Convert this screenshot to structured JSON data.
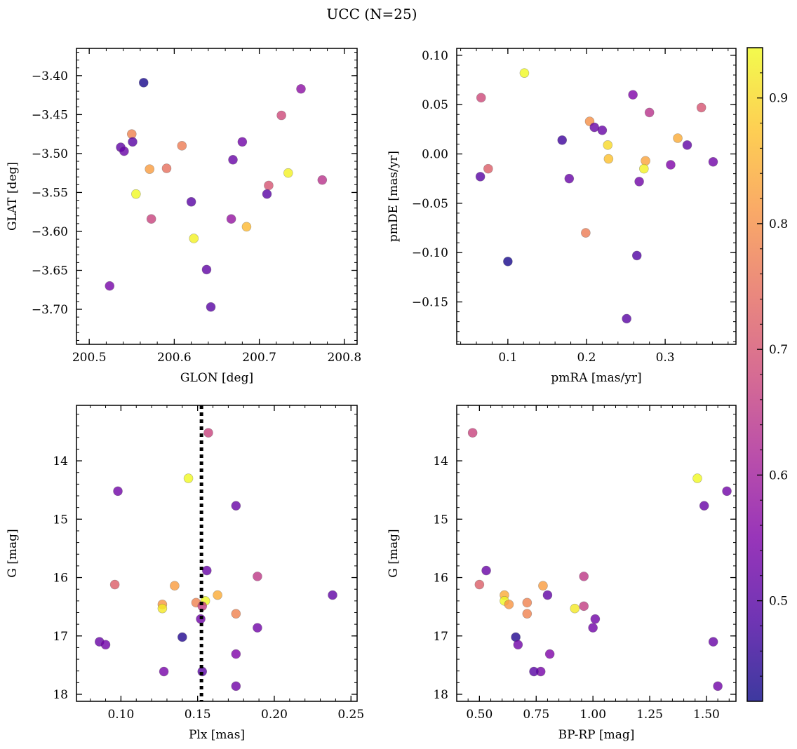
{
  "figure": {
    "title": "UCC (N=25)"
  },
  "colorbar": {
    "range": [
      0.42,
      0.94
    ],
    "ticks": [
      0.5,
      0.6,
      0.7,
      0.8,
      0.9
    ],
    "tick_labels": [
      "0.5",
      "0.6",
      "0.7",
      "0.8",
      "0.9"
    ],
    "colormap": "plasma"
  },
  "chart_data": [
    {
      "type": "scatter",
      "title": "",
      "xlabel": "GLON [deg]",
      "ylabel": "GLAT [deg]",
      "xlim": [
        200.485,
        200.815
      ],
      "ylim": [
        -3.745,
        -3.365
      ],
      "yinvert": false,
      "xticks": [
        200.5,
        200.6,
        200.7,
        200.8
      ],
      "xtick_labels": [
        "200.5",
        "200.6",
        "200.7",
        "200.8"
      ],
      "yticks": [
        -3.4,
        -3.45,
        -3.5,
        -3.55,
        -3.6,
        -3.65,
        -3.7
      ],
      "ytick_labels": [
        "−3.40",
        "−3.45",
        "−3.50",
        "−3.55",
        "−3.60",
        "−3.65",
        "−3.70"
      ],
      "points": [
        {
          "x": 200.564,
          "y": -3.409,
          "c": 0.43
        },
        {
          "x": 200.749,
          "y": -3.417,
          "c": 0.57
        },
        {
          "x": 200.726,
          "y": -3.451,
          "c": 0.68
        },
        {
          "x": 200.55,
          "y": -3.475,
          "c": 0.78
        },
        {
          "x": 200.551,
          "y": -3.485,
          "c": 0.5
        },
        {
          "x": 200.537,
          "y": -3.492,
          "c": 0.51
        },
        {
          "x": 200.541,
          "y": -3.497,
          "c": 0.52
        },
        {
          "x": 200.609,
          "y": -3.49,
          "c": 0.77
        },
        {
          "x": 200.68,
          "y": -3.485,
          "c": 0.53
        },
        {
          "x": 200.669,
          "y": -3.508,
          "c": 0.52
        },
        {
          "x": 200.571,
          "y": -3.52,
          "c": 0.82
        },
        {
          "x": 200.591,
          "y": -3.519,
          "c": 0.75
        },
        {
          "x": 200.734,
          "y": -3.525,
          "c": 0.93
        },
        {
          "x": 200.774,
          "y": -3.534,
          "c": 0.64
        },
        {
          "x": 200.711,
          "y": -3.541,
          "c": 0.7
        },
        {
          "x": 200.555,
          "y": -3.552,
          "c": 0.94
        },
        {
          "x": 200.709,
          "y": -3.552,
          "c": 0.5
        },
        {
          "x": 200.62,
          "y": -3.562,
          "c": 0.5
        },
        {
          "x": 200.573,
          "y": -3.584,
          "c": 0.67
        },
        {
          "x": 200.667,
          "y": -3.584,
          "c": 0.58
        },
        {
          "x": 200.685,
          "y": -3.594,
          "c": 0.86
        },
        {
          "x": 200.623,
          "y": -3.609,
          "c": 0.93
        },
        {
          "x": 200.638,
          "y": -3.649,
          "c": 0.51
        },
        {
          "x": 200.524,
          "y": -3.67,
          "c": 0.54
        },
        {
          "x": 200.643,
          "y": -3.697,
          "c": 0.5
        }
      ]
    },
    {
      "type": "scatter",
      "title": "",
      "xlabel": "pmRA [mas/yr]",
      "ylabel": "pmDE [mas/yr]",
      "xlim": [
        0.035,
        0.39
      ],
      "ylim": [
        -0.193,
        0.107
      ],
      "yinvert": false,
      "xticks": [
        0.1,
        0.2,
        0.3
      ],
      "xtick_labels": [
        "0.1",
        "0.2",
        "0.3"
      ],
      "yticks": [
        0.1,
        0.05,
        0.0,
        -0.05,
        -0.1,
        -0.15
      ],
      "ytick_labels": [
        "0.10",
        "0.05",
        "0.00",
        "−0.05",
        "−0.10",
        "−0.15"
      ],
      "points": [
        {
          "x": 0.121,
          "y": 0.082,
          "c": 0.94
        },
        {
          "x": 0.066,
          "y": 0.057,
          "c": 0.68
        },
        {
          "x": 0.259,
          "y": 0.06,
          "c": 0.55
        },
        {
          "x": 0.346,
          "y": 0.047,
          "c": 0.7
        },
        {
          "x": 0.28,
          "y": 0.042,
          "c": 0.64
        },
        {
          "x": 0.204,
          "y": 0.033,
          "c": 0.8
        },
        {
          "x": 0.21,
          "y": 0.027,
          "c": 0.52
        },
        {
          "x": 0.22,
          "y": 0.024,
          "c": 0.52
        },
        {
          "x": 0.316,
          "y": 0.016,
          "c": 0.84
        },
        {
          "x": 0.169,
          "y": 0.014,
          "c": 0.47
        },
        {
          "x": 0.227,
          "y": 0.009,
          "c": 0.9
        },
        {
          "x": 0.328,
          "y": 0.009,
          "c": 0.51
        },
        {
          "x": 0.228,
          "y": -0.005,
          "c": 0.87
        },
        {
          "x": 0.275,
          "y": -0.007,
          "c": 0.83
        },
        {
          "x": 0.361,
          "y": -0.008,
          "c": 0.53
        },
        {
          "x": 0.307,
          "y": -0.011,
          "c": 0.55
        },
        {
          "x": 0.075,
          "y": -0.015,
          "c": 0.72
        },
        {
          "x": 0.273,
          "y": -0.015,
          "c": 0.93
        },
        {
          "x": 0.065,
          "y": -0.023,
          "c": 0.5
        },
        {
          "x": 0.178,
          "y": -0.025,
          "c": 0.52
        },
        {
          "x": 0.267,
          "y": -0.028,
          "c": 0.53
        },
        {
          "x": 0.199,
          "y": -0.08,
          "c": 0.77
        },
        {
          "x": 0.264,
          "y": -0.103,
          "c": 0.49
        },
        {
          "x": 0.1,
          "y": -0.109,
          "c": 0.43
        },
        {
          "x": 0.251,
          "y": -0.167,
          "c": 0.5
        }
      ]
    },
    {
      "type": "scatter",
      "title": "",
      "xlabel": "Plx [mas]",
      "ylabel": "G [mag]",
      "xlim": [
        0.071,
        0.254
      ],
      "ylim": [
        13.05,
        18.12
      ],
      "yinvert": true,
      "xticks": [
        0.1,
        0.15,
        0.2,
        0.25
      ],
      "xtick_labels": [
        "0.10",
        "0.15",
        "0.20",
        "0.25"
      ],
      "yticks": [
        14,
        15,
        16,
        17,
        18
      ],
      "ytick_labels": [
        "14",
        "15",
        "16",
        "17",
        "18"
      ],
      "vline": {
        "x": 0.1525,
        "style": "dotted"
      },
      "points": [
        {
          "x": 0.157,
          "y": 13.52,
          "c": 0.67
        },
        {
          "x": 0.144,
          "y": 14.3,
          "c": 0.94
        },
        {
          "x": 0.098,
          "y": 14.52,
          "c": 0.53
        },
        {
          "x": 0.175,
          "y": 14.77,
          "c": 0.52
        },
        {
          "x": 0.156,
          "y": 15.88,
          "c": 0.52
        },
        {
          "x": 0.189,
          "y": 15.98,
          "c": 0.65
        },
        {
          "x": 0.096,
          "y": 16.12,
          "c": 0.72
        },
        {
          "x": 0.135,
          "y": 16.14,
          "c": 0.82
        },
        {
          "x": 0.163,
          "y": 16.3,
          "c": 0.84
        },
        {
          "x": 0.238,
          "y": 16.3,
          "c": 0.51
        },
        {
          "x": 0.155,
          "y": 16.4,
          "c": 0.94
        },
        {
          "x": 0.149,
          "y": 16.43,
          "c": 0.78
        },
        {
          "x": 0.127,
          "y": 16.46,
          "c": 0.81
        },
        {
          "x": 0.153,
          "y": 16.49,
          "c": 0.66
        },
        {
          "x": 0.127,
          "y": 16.53,
          "c": 0.92
        },
        {
          "x": 0.175,
          "y": 16.62,
          "c": 0.78
        },
        {
          "x": 0.152,
          "y": 16.71,
          "c": 0.53
        },
        {
          "x": 0.189,
          "y": 16.86,
          "c": 0.53
        },
        {
          "x": 0.14,
          "y": 17.02,
          "c": 0.44
        },
        {
          "x": 0.086,
          "y": 17.1,
          "c": 0.52
        },
        {
          "x": 0.09,
          "y": 17.15,
          "c": 0.53
        },
        {
          "x": 0.175,
          "y": 17.31,
          "c": 0.55
        },
        {
          "x": 0.128,
          "y": 17.61,
          "c": 0.54
        },
        {
          "x": 0.153,
          "y": 17.61,
          "c": 0.5
        },
        {
          "x": 0.175,
          "y": 17.86,
          "c": 0.53
        }
      ]
    },
    {
      "type": "scatter",
      "title": "",
      "xlabel": "BP-RP [mag]",
      "ylabel": "G [mag]",
      "xlim": [
        0.4,
        1.63
      ],
      "ylim": [
        13.05,
        18.12
      ],
      "yinvert": true,
      "xticks": [
        0.5,
        0.75,
        1.0,
        1.25,
        1.5
      ],
      "xtick_labels": [
        "0.50",
        "0.75",
        "1.00",
        "1.25",
        "1.50"
      ],
      "yticks": [
        14,
        15,
        16,
        17,
        18
      ],
      "ytick_labels": [
        "14",
        "15",
        "16",
        "17",
        "18"
      ],
      "points": [
        {
          "x": 0.47,
          "y": 13.52,
          "c": 0.67
        },
        {
          "x": 1.46,
          "y": 14.3,
          "c": 0.94
        },
        {
          "x": 1.59,
          "y": 14.52,
          "c": 0.53
        },
        {
          "x": 1.49,
          "y": 14.77,
          "c": 0.52
        },
        {
          "x": 0.53,
          "y": 15.88,
          "c": 0.52
        },
        {
          "x": 0.96,
          "y": 15.98,
          "c": 0.65
        },
        {
          "x": 0.5,
          "y": 16.12,
          "c": 0.72
        },
        {
          "x": 0.78,
          "y": 16.14,
          "c": 0.82
        },
        {
          "x": 0.61,
          "y": 16.3,
          "c": 0.84
        },
        {
          "x": 0.8,
          "y": 16.3,
          "c": 0.51
        },
        {
          "x": 0.61,
          "y": 16.4,
          "c": 0.94
        },
        {
          "x": 0.71,
          "y": 16.43,
          "c": 0.78
        },
        {
          "x": 0.63,
          "y": 16.46,
          "c": 0.81
        },
        {
          "x": 0.96,
          "y": 16.49,
          "c": 0.66
        },
        {
          "x": 0.92,
          "y": 16.53,
          "c": 0.92
        },
        {
          "x": 0.71,
          "y": 16.62,
          "c": 0.78
        },
        {
          "x": 1.01,
          "y": 16.71,
          "c": 0.53
        },
        {
          "x": 1.0,
          "y": 16.86,
          "c": 0.53
        },
        {
          "x": 0.66,
          "y": 17.02,
          "c": 0.44
        },
        {
          "x": 1.53,
          "y": 17.1,
          "c": 0.52
        },
        {
          "x": 0.67,
          "y": 17.15,
          "c": 0.53
        },
        {
          "x": 0.81,
          "y": 17.31,
          "c": 0.55
        },
        {
          "x": 0.77,
          "y": 17.61,
          "c": 0.54
        },
        {
          "x": 0.74,
          "y": 17.61,
          "c": 0.5
        },
        {
          "x": 1.55,
          "y": 17.86,
          "c": 0.53
        }
      ]
    }
  ]
}
